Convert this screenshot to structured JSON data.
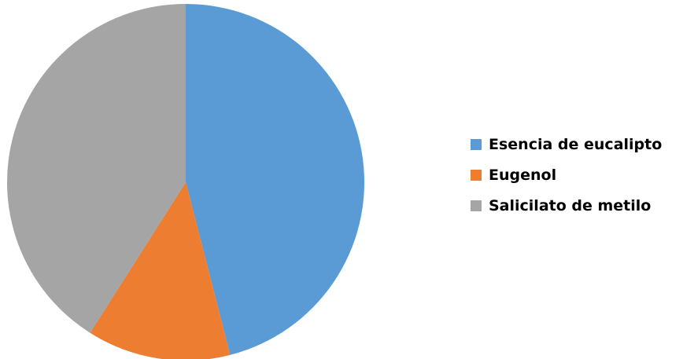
{
  "chart_data": {
    "type": "pie",
    "title": "",
    "legend_position": "right",
    "categories": [
      "Esencia de eucalipto",
      "Eugenol",
      "Salicilato de metilo"
    ],
    "values": [
      46,
      13,
      41
    ],
    "colors": [
      "#5b9bd5",
      "#ed7d31",
      "#a5a5a5"
    ]
  }
}
